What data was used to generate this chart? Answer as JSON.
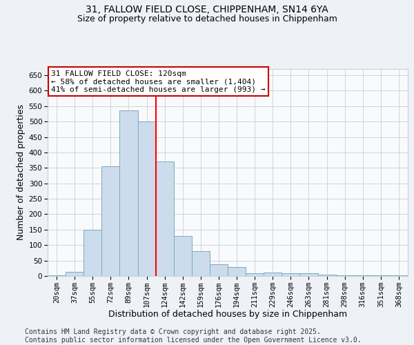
{
  "title_line1": "31, FALLOW FIELD CLOSE, CHIPPENHAM, SN14 6YA",
  "title_line2": "Size of property relative to detached houses in Chippenham",
  "xlabel": "Distribution of detached houses by size in Chippenham",
  "ylabel": "Number of detached properties",
  "categories": [
    "20sqm",
    "37sqm",
    "55sqm",
    "72sqm",
    "89sqm",
    "107sqm",
    "124sqm",
    "142sqm",
    "159sqm",
    "176sqm",
    "194sqm",
    "211sqm",
    "229sqm",
    "246sqm",
    "263sqm",
    "281sqm",
    "298sqm",
    "316sqm",
    "351sqm",
    "368sqm"
  ],
  "values": [
    3,
    14,
    150,
    355,
    535,
    500,
    370,
    130,
    80,
    38,
    30,
    10,
    12,
    10,
    8,
    5,
    3,
    2,
    2,
    2
  ],
  "bar_color": "#ccdcec",
  "bar_edge_color": "#7aaabf",
  "red_line_index": 5.5,
  "annotation_text": "31 FALLOW FIELD CLOSE: 120sqm\n← 58% of detached houses are smaller (1,404)\n41% of semi-detached houses are larger (993) →",
  "annotation_box_color": "#ffffff",
  "annotation_box_edge": "#cc0000",
  "ylim": [
    0,
    670
  ],
  "yticks": [
    0,
    50,
    100,
    150,
    200,
    250,
    300,
    350,
    400,
    450,
    500,
    550,
    600,
    650
  ],
  "footer_line1": "Contains HM Land Registry data © Crown copyright and database right 2025.",
  "footer_line2": "Contains public sector information licensed under the Open Government Licence v3.0.",
  "background_color": "#eef2f7",
  "plot_bg_color": "#f8fafc",
  "grid_color": "#c8d0d8",
  "title_fontsize": 10,
  "subtitle_fontsize": 9,
  "axis_label_fontsize": 9,
  "tick_fontsize": 7.5,
  "annotation_fontsize": 8,
  "footer_fontsize": 7
}
